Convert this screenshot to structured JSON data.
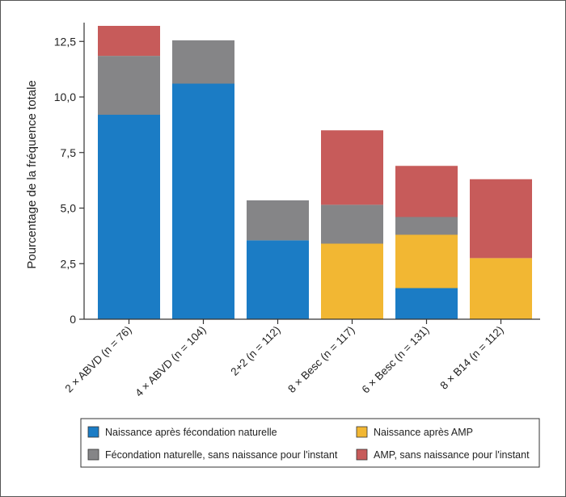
{
  "chart_data": {
    "type": "bar",
    "stacked": true,
    "ylabel": "Pourcentage de la fréquence totale",
    "ylim": [
      0,
      13.2
    ],
    "yticks": [
      "0",
      "2,5",
      "5,0",
      "7,5",
      "10,0",
      "12,5"
    ],
    "ytick_values": [
      0,
      2.5,
      5.0,
      7.5,
      10.0,
      12.5
    ],
    "categories": [
      "2 × ABVD (n = 76)",
      "4 × ABVD (n = 104)",
      "2+2 (n = 112)",
      "8 × Besc (n = 117)",
      "6 × Besc (n = 131)",
      "8 × B14 (n = 112)"
    ],
    "series": [
      {
        "name": "Naissance après fécondation naturelle",
        "color": "#1b7cc5",
        "values": [
          9.2,
          10.6,
          3.55,
          0,
          1.4,
          0
        ]
      },
      {
        "name": "Naissance après AMP",
        "color": "#f2b733",
        "values": [
          0,
          0,
          0,
          3.4,
          2.4,
          2.75
        ]
      },
      {
        "name": "Fécondation naturelle, sans naissance pour l'instant",
        "color": "#858587",
        "values": [
          2.65,
          1.95,
          1.8,
          1.75,
          0.8,
          0
        ]
      },
      {
        "name": "AMP, sans naissance pour l'instant",
        "color": "#c75b5a",
        "values": [
          1.35,
          0,
          0,
          3.35,
          2.3,
          3.55
        ]
      }
    ],
    "legend": {
      "placement": "bottom",
      "order": [
        0,
        1,
        2,
        3
      ]
    },
    "grid": false
  }
}
